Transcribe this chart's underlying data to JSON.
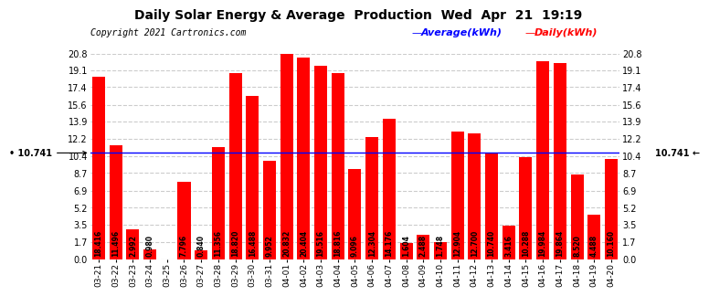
{
  "title": "Daily Solar Energy & Average  Production  Wed  Apr  21  19:19",
  "copyright": "Copyright 2021 Cartronics.com",
  "average_label": "Average(kWh)",
  "daily_label": "Daily(kWh)",
  "average_value": 10.741,
  "categories": [
    "03-21",
    "03-22",
    "03-23",
    "03-24",
    "03-25",
    "03-26",
    "03-27",
    "03-28",
    "03-29",
    "03-30",
    "03-31",
    "04-01",
    "04-02",
    "04-03",
    "04-04",
    "04-05",
    "04-06",
    "04-07",
    "04-08",
    "04-09",
    "04-10",
    "04-11",
    "04-12",
    "04-13",
    "04-14",
    "04-15",
    "04-16",
    "04-17",
    "04-18",
    "04-19",
    "04-20"
  ],
  "values": [
    18.416,
    11.496,
    2.992,
    0.98,
    0.0,
    7.796,
    0.84,
    11.356,
    18.82,
    16.488,
    9.952,
    20.832,
    20.404,
    19.516,
    18.816,
    9.096,
    12.304,
    14.176,
    1.604,
    2.488,
    1.748,
    12.904,
    12.7,
    10.74,
    3.416,
    10.288,
    19.984,
    19.864,
    8.52,
    4.488,
    10.16
  ],
  "bar_color": "#FF0000",
  "avg_line_color": "#0000FF",
  "avg_label_color": "#0000FF",
  "daily_label_color": "#FF0000",
  "background_color": "#FFFFFF",
  "title_color": "#000000",
  "copyright_color": "#000000",
  "yticks": [
    0.0,
    1.7,
    3.5,
    5.2,
    6.9,
    8.7,
    10.4,
    12.2,
    13.9,
    15.6,
    17.4,
    19.1,
    20.8
  ],
  "ylim": [
    0,
    20.8
  ],
  "grid_color": "#CCCCCC",
  "value_fontsize": 5.5,
  "avg_fontsize": 7.0,
  "title_fontsize": 10,
  "copyright_fontsize": 7,
  "xtick_fontsize": 6.5,
  "ytick_fontsize": 7.0
}
